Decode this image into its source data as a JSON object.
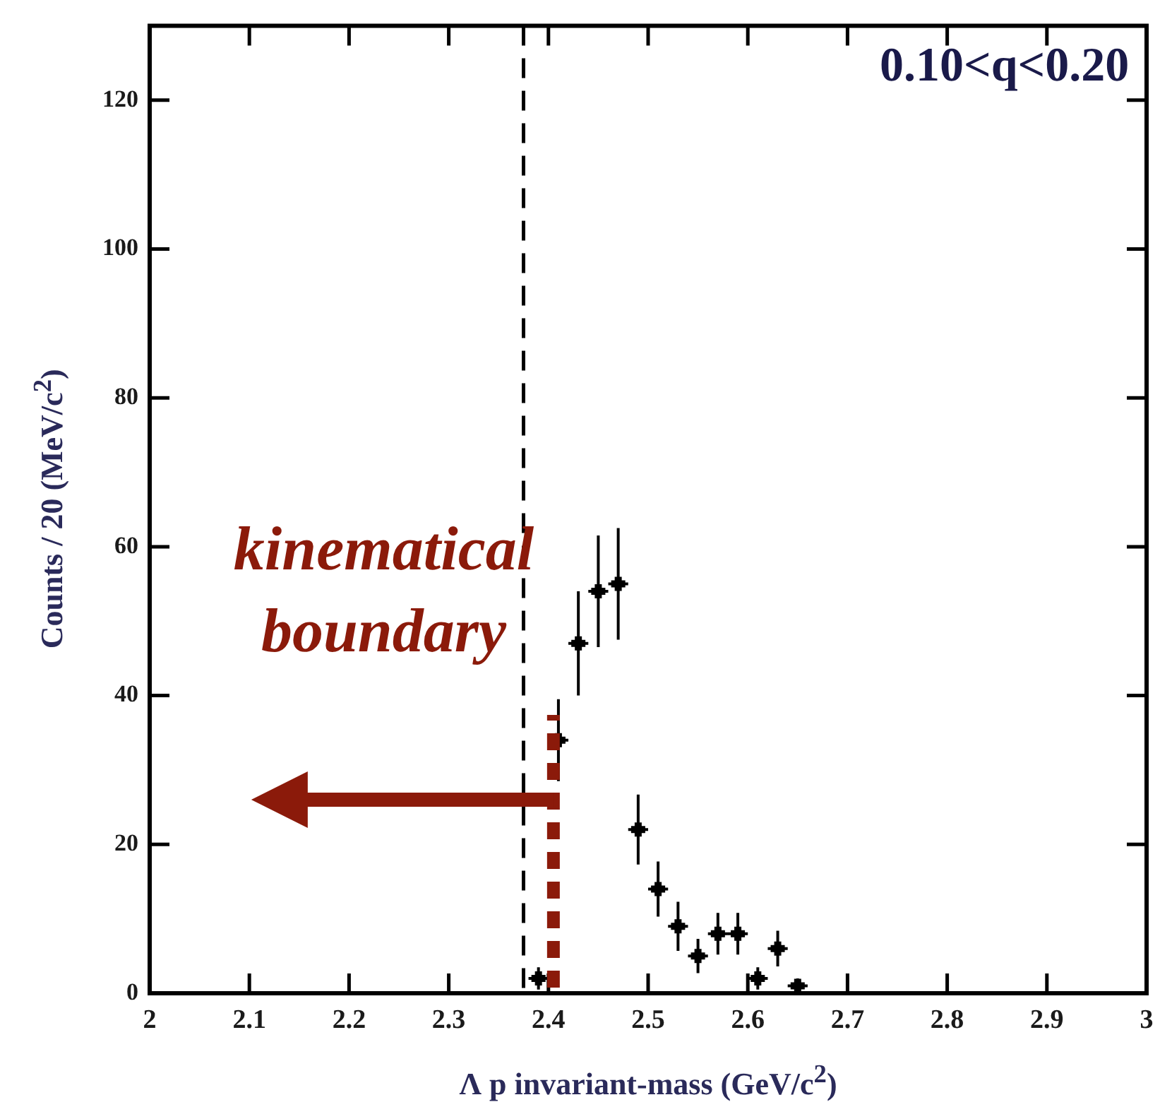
{
  "chart_data": {
    "type": "scatter",
    "xlabel": "Λ p invariant-mass (GeV/c$^{2}$)",
    "ylabel": "Counts / 20 (MeV/c$^{2}$)",
    "annotations": [
      "0.10<q<0.20",
      "kinematical boundary"
    ],
    "x": [
      2.39,
      2.41,
      2.43,
      2.45,
      2.47,
      2.49,
      2.51,
      2.53,
      2.55,
      2.57,
      2.59,
      2.61,
      2.63,
      2.65
    ],
    "series": [
      {
        "color": "#000000",
        "values": [
          2,
          34,
          47,
          54,
          55,
          22,
          14,
          9,
          5,
          8,
          8,
          2,
          6,
          1
        ],
        "errors": [
          1.5,
          5.5,
          7,
          7.5,
          7.5,
          4.7,
          3.7,
          3.3,
          2.3,
          2.8,
          2.8,
          1.5,
          2.4,
          1
        ],
        "xerrors": [
          0.01,
          0.01,
          0.01,
          0.01,
          0.01,
          0.01,
          0.01,
          0.01,
          0.01,
          0.01,
          0.01,
          0.01,
          0.01,
          0.01
        ]
      }
    ],
    "marker": "cross",
    "grid": false,
    "xlim": [
      2.0,
      3.0
    ],
    "xticks": [
      2.0,
      2.1,
      2.2,
      2.3,
      2.4,
      2.5,
      2.6,
      2.7,
      2.8,
      2.9,
      3.0
    ],
    "ylim": [
      0,
      130
    ],
    "yticks": [
      0,
      20,
      40,
      60,
      80,
      100,
      120
    ],
    "ref_lines": [
      {
        "axis": "x",
        "value": 2.375,
        "color": "#000000",
        "line_style": "dashed"
      }
    ]
  }
}
